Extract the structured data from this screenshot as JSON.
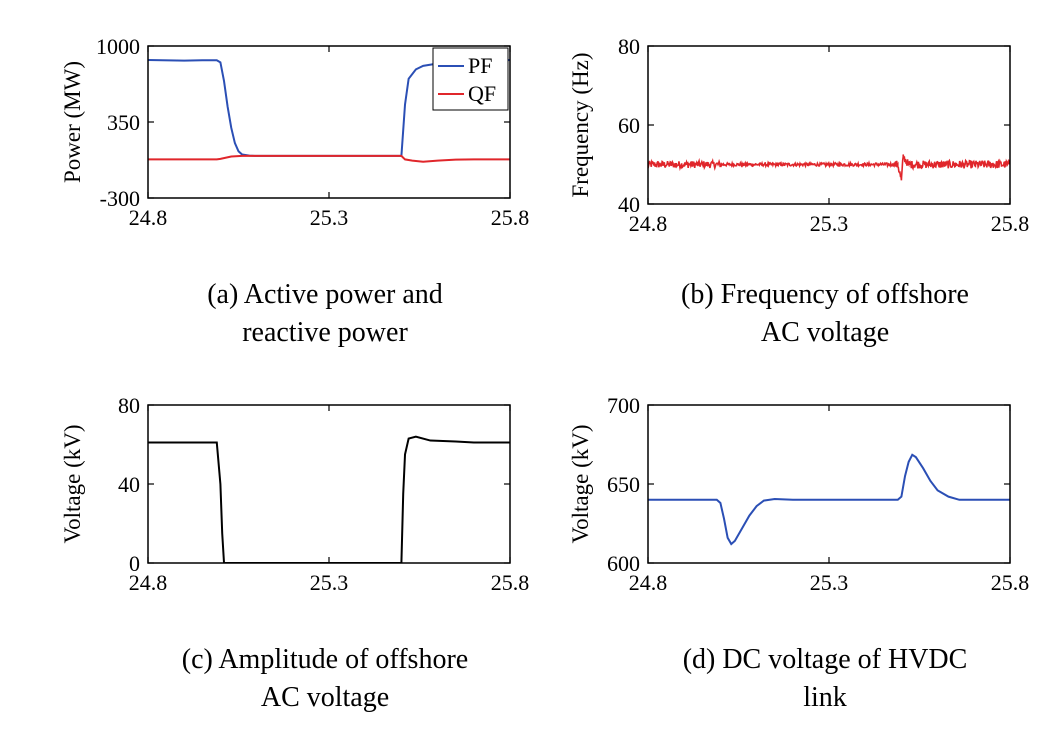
{
  "chart_data": [
    {
      "id": "a",
      "type": "line",
      "title": "",
      "xlabel": "",
      "ylabel": "Power (MW)",
      "xlim": [
        24.8,
        25.8
      ],
      "ylim": [
        -300,
        1000
      ],
      "xticks": [
        24.8,
        25.3,
        25.8
      ],
      "xtick_labels": [
        "24.8",
        "25.3",
        "25.8"
      ],
      "yticks": [
        -300,
        350,
        1000
      ],
      "ytick_labels": [
        "-300",
        "350",
        "1000"
      ],
      "legend": {
        "position": "top-right",
        "entries": [
          "PF",
          "QF"
        ]
      },
      "caption": [
        "(a) Active power and",
        "reactive power"
      ],
      "series": [
        {
          "name": "PF",
          "color": "#2b4fb5",
          "points": [
            [
              24.8,
              880
            ],
            [
              24.9,
              875
            ],
            [
              24.95,
              878
            ],
            [
              24.99,
              878
            ],
            [
              25.0,
              860
            ],
            [
              25.01,
              700
            ],
            [
              25.02,
              480
            ],
            [
              25.03,
              300
            ],
            [
              25.04,
              170
            ],
            [
              25.05,
              100
            ],
            [
              25.06,
              72
            ],
            [
              25.08,
              62
            ],
            [
              25.1,
              60
            ],
            [
              25.2,
              60
            ],
            [
              25.3,
              60
            ],
            [
              25.4,
              60
            ],
            [
              25.49,
              60
            ],
            [
              25.5,
              60
            ],
            [
              25.51,
              500
            ],
            [
              25.52,
              720
            ],
            [
              25.54,
              800
            ],
            [
              25.56,
              830
            ],
            [
              25.6,
              850
            ],
            [
              25.65,
              862
            ],
            [
              25.7,
              870
            ],
            [
              25.8,
              880
            ]
          ]
        },
        {
          "name": "QF",
          "color": "#e0262b",
          "points": [
            [
              24.8,
              30
            ],
            [
              24.9,
              30
            ],
            [
              24.99,
              30
            ],
            [
              25.0,
              35
            ],
            [
              25.03,
              55
            ],
            [
              25.06,
              60
            ],
            [
              25.1,
              60
            ],
            [
              25.2,
              60
            ],
            [
              25.3,
              60
            ],
            [
              25.4,
              60
            ],
            [
              25.49,
              60
            ],
            [
              25.5,
              60
            ],
            [
              25.51,
              30
            ],
            [
              25.53,
              20
            ],
            [
              25.56,
              10
            ],
            [
              25.6,
              20
            ],
            [
              25.65,
              28
            ],
            [
              25.7,
              30
            ],
            [
              25.8,
              30
            ]
          ]
        }
      ]
    },
    {
      "id": "b",
      "type": "line",
      "title": "",
      "xlabel": "",
      "ylabel": "Frequency (Hz)",
      "xlim": [
        24.8,
        25.8
      ],
      "ylim": [
        40,
        80
      ],
      "xticks": [
        24.8,
        25.3,
        25.8
      ],
      "xtick_labels": [
        "24.8",
        "25.3",
        "25.8"
      ],
      "yticks": [
        40,
        60,
        80
      ],
      "ytick_labels": [
        "40",
        "60",
        "80"
      ],
      "caption": [
        "(b) Frequency of offshore",
        "AC voltage"
      ],
      "series": [
        {
          "name": "Frequency",
          "color": "#e0262b",
          "noisy": true,
          "points": [
            [
              24.8,
              50
            ],
            [
              25.0,
              50
            ],
            [
              25.49,
              50
            ],
            [
              25.5,
              46
            ],
            [
              25.505,
              52
            ],
            [
              25.52,
              50
            ],
            [
              25.8,
              50
            ]
          ],
          "noise": [
            [
              24.8,
              25.0,
              0.9
            ],
            [
              25.0,
              25.48,
              0.4
            ],
            [
              25.48,
              25.8,
              1.0
            ]
          ]
        }
      ]
    },
    {
      "id": "c",
      "type": "line",
      "title": "",
      "xlabel": "",
      "ylabel": "Voltage (kV)",
      "xlim": [
        24.8,
        25.8
      ],
      "ylim": [
        0,
        80
      ],
      "xticks": [
        24.8,
        25.3,
        25.8
      ],
      "xtick_labels": [
        "24.8",
        "25.3",
        "25.8"
      ],
      "yticks": [
        0,
        40,
        80
      ],
      "ytick_labels": [
        "0",
        "40",
        "80"
      ],
      "caption": [
        "(c) Amplitude of offshore",
        "AC voltage"
      ],
      "series": [
        {
          "name": "Amplitude",
          "color": "#000000",
          "points": [
            [
              24.8,
              61
            ],
            [
              24.9,
              61
            ],
            [
              24.98,
              61
            ],
            [
              24.99,
              61
            ],
            [
              25.0,
              40
            ],
            [
              25.005,
              15
            ],
            [
              25.01,
              0
            ],
            [
              25.1,
              0
            ],
            [
              25.3,
              0
            ],
            [
              25.49,
              0
            ],
            [
              25.5,
              0
            ],
            [
              25.505,
              35
            ],
            [
              25.51,
              55
            ],
            [
              25.52,
              63
            ],
            [
              25.54,
              64
            ],
            [
              25.58,
              62
            ],
            [
              25.65,
              61.5
            ],
            [
              25.7,
              61
            ],
            [
              25.8,
              61
            ]
          ]
        }
      ]
    },
    {
      "id": "d",
      "type": "line",
      "title": "",
      "xlabel": "",
      "ylabel": "Voltage (kV)",
      "xlim": [
        24.8,
        25.8
      ],
      "ylim": [
        600,
        700
      ],
      "xticks": [
        24.8,
        25.3,
        25.8
      ],
      "xtick_labels": [
        "24.8",
        "25.3",
        "25.8"
      ],
      "yticks": [
        600,
        650,
        700
      ],
      "ytick_labels": [
        "600",
        "650",
        "700"
      ],
      "caption": [
        "(d) DC voltage of HVDC",
        "link"
      ],
      "series": [
        {
          "name": "DC voltage",
          "color": "#2b4fb5",
          "points": [
            [
              24.8,
              640
            ],
            [
              24.9,
              640
            ],
            [
              24.99,
              640
            ],
            [
              25.0,
              638
            ],
            [
              25.01,
              628
            ],
            [
              25.02,
              616
            ],
            [
              25.03,
              612
            ],
            [
              25.04,
              614
            ],
            [
              25.06,
              622
            ],
            [
              25.08,
              630
            ],
            [
              25.1,
              636
            ],
            [
              25.12,
              639.5
            ],
            [
              25.15,
              640.5
            ],
            [
              25.2,
              640
            ],
            [
              25.3,
              640
            ],
            [
              25.4,
              640
            ],
            [
              25.49,
              640
            ],
            [
              25.5,
              642
            ],
            [
              25.51,
              655
            ],
            [
              25.52,
              664
            ],
            [
              25.53,
              668.5
            ],
            [
              25.54,
              667
            ],
            [
              25.56,
              660
            ],
            [
              25.58,
              652
            ],
            [
              25.6,
              646
            ],
            [
              25.63,
              642
            ],
            [
              25.66,
              640
            ],
            [
              25.7,
              640
            ],
            [
              25.8,
              640
            ]
          ]
        }
      ]
    }
  ]
}
